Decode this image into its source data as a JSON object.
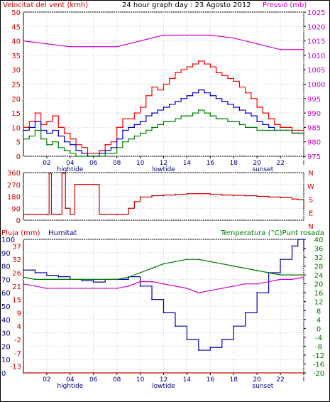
{
  "header": {
    "left_title": "Velocitat del vent (kmh)",
    "center_title": "24 hour graph day : 23 Agosto 2012",
    "right_title": "Pressió (mb)"
  },
  "colors": {
    "wind_gust": "#ff0000",
    "wind_avg": "#0000cc",
    "wind_low": "#008000",
    "pressure": "#cc00cc",
    "direction": "#cc0000",
    "humidity": "#0000aa",
    "temperature": "#007700",
    "dewpoint": "#cc00cc",
    "rain": "#cc0000",
    "grid": "#cccccc",
    "frame": "#000000"
  },
  "time_axis": {
    "ticks": [
      "02",
      "04",
      "06",
      "08",
      "10",
      "12",
      "14",
      "16",
      "18",
      "20",
      "22",
      "I"
    ],
    "events": [
      {
        "label": "hightide",
        "hour": 4
      },
      {
        "label": "lowtide",
        "hour": 12
      },
      {
        "label": "sunset",
        "hour": 20.5
      }
    ]
  },
  "chart_data": [
    {
      "type": "line",
      "panel": "wind",
      "title": "Velocitat del vent (kmh)",
      "right_title": "Pressió (mb)",
      "x_unit": "hour",
      "xlim": [
        0,
        24
      ],
      "ylim": [
        0,
        50
      ],
      "y_ticks": [
        0,
        5,
        10,
        15,
        20,
        25,
        30,
        35,
        40,
        45,
        50
      ],
      "y2lim": [
        975,
        1025
      ],
      "y2_ticks": [
        975,
        980,
        985,
        990,
        995,
        1000,
        1005,
        1010,
        1015,
        1020,
        1025
      ],
      "series": [
        {
          "key": "gust",
          "x": [
            0,
            0.5,
            1,
            1.5,
            2,
            2.5,
            3,
            3.5,
            4,
            4.5,
            5,
            5.5,
            6,
            6.5,
            7,
            7.5,
            8,
            8.5,
            9,
            9.5,
            10,
            10.5,
            11,
            11.5,
            12,
            12.5,
            13,
            13.5,
            14,
            14.5,
            15,
            15.5,
            16,
            16.5,
            17,
            17.5,
            18,
            18.5,
            19,
            19.5,
            20,
            20.5,
            21,
            21.5,
            22,
            22.5,
            23,
            23.5,
            24
          ],
          "values": [
            10,
            12,
            15,
            11,
            12,
            14,
            10,
            8,
            6,
            4,
            3,
            1,
            1,
            2,
            4,
            5,
            10,
            13,
            13,
            15,
            17,
            21,
            24,
            23,
            25,
            27,
            29,
            30,
            31,
            32,
            33,
            32,
            31,
            29,
            28,
            27,
            26,
            24,
            22,
            20,
            17,
            15,
            13,
            11,
            10,
            10,
            9,
            9,
            9
          ]
        },
        {
          "key": "average",
          "x": [
            0,
            0.5,
            1,
            1.5,
            2,
            2.5,
            3,
            3.5,
            4,
            4.5,
            5,
            5.5,
            6,
            6.5,
            7,
            7.5,
            8,
            8.5,
            9,
            9.5,
            10,
            10.5,
            11,
            11.5,
            12,
            12.5,
            13,
            13.5,
            14,
            14.5,
            15,
            15.5,
            16,
            16.5,
            17,
            17.5,
            18,
            18.5,
            19,
            19.5,
            20,
            20.5,
            21,
            21.5,
            22,
            22.5,
            23,
            23.5,
            24
          ],
          "values": [
            9,
            10,
            12,
            9,
            8,
            9,
            7,
            5,
            4,
            2,
            1,
            0,
            0,
            1,
            2,
            3,
            6,
            9,
            10,
            11,
            12,
            14,
            15,
            16,
            17,
            18,
            19,
            20,
            21,
            22,
            23,
            22,
            21,
            20,
            19,
            18,
            17,
            16,
            15,
            14,
            12,
            11,
            10,
            9,
            9,
            9,
            8,
            8,
            8
          ]
        },
        {
          "key": "low",
          "x": [
            0,
            0.5,
            1,
            1.5,
            2,
            2.5,
            3,
            3.5,
            4,
            4.5,
            5,
            5.5,
            6,
            6.5,
            7,
            7.5,
            8,
            8.5,
            9,
            9.5,
            10,
            10.5,
            11,
            11.5,
            12,
            12.5,
            13,
            13.5,
            14,
            14.5,
            15,
            15.5,
            16,
            16.5,
            17,
            17.5,
            18,
            18.5,
            19,
            19.5,
            20,
            20.5,
            21,
            21.5,
            22,
            22.5,
            23,
            23.5,
            24
          ],
          "values": [
            6,
            7,
            9,
            6,
            4,
            5,
            3,
            2,
            1,
            0,
            0,
            0,
            0,
            0,
            1,
            1,
            3,
            5,
            6,
            7,
            8,
            9,
            10,
            11,
            12,
            12,
            13,
            14,
            14,
            15,
            16,
            15,
            14,
            13,
            13,
            12,
            12,
            11,
            10,
            10,
            9,
            9,
            9,
            9,
            9,
            9,
            8,
            8,
            8
          ]
        },
        {
          "key": "pressure",
          "axis": "y2",
          "x": [
            0,
            2,
            4,
            6,
            8,
            10,
            12,
            14,
            16,
            18,
            20,
            22,
            24
          ],
          "values": [
            1015,
            1014,
            1013,
            1013,
            1013,
            1015,
            1017,
            1017,
            1017,
            1016,
            1014,
            1012,
            1012
          ]
        }
      ]
    },
    {
      "type": "line",
      "panel": "direction",
      "x_unit": "hour",
      "xlim": [
        0,
        24
      ],
      "ylim": [
        0,
        360
      ],
      "y_ticks": [
        0,
        90,
        180,
        270,
        360
      ],
      "right_labels": [
        "N",
        "W",
        "S",
        "E",
        "N"
      ],
      "series": [
        {
          "key": "direction",
          "x": [
            0,
            0.5,
            1,
            1.5,
            2,
            2.2,
            2.4,
            2.6,
            3,
            3.3,
            3.6,
            4,
            4.4,
            5,
            5.5,
            6,
            6.5,
            7,
            7.5,
            8,
            8.5,
            9,
            9.5,
            10,
            11,
            12,
            13,
            14,
            15,
            16,
            17,
            18,
            19,
            20,
            21,
            22,
            23,
            23.5,
            24
          ],
          "values": [
            45,
            45,
            45,
            45,
            45,
            355,
            45,
            45,
            45,
            355,
            90,
            45,
            270,
            270,
            270,
            270,
            45,
            45,
            45,
            45,
            45,
            90,
            140,
            175,
            185,
            190,
            195,
            200,
            200,
            195,
            190,
            188,
            185,
            180,
            175,
            170,
            160,
            155,
            90
          ]
        }
      ]
    },
    {
      "type": "line",
      "panel": "humidity-temperature",
      "left_title": "Pluja (mm)",
      "center_title": "Humitat",
      "right_title": "Temperatura (°C)Punt rosada",
      "x_unit": "hour",
      "xlim": [
        0,
        24
      ],
      "ylim": [
        0,
        100
      ],
      "y_ticks": [
        0,
        10,
        20,
        30,
        40,
        50,
        60,
        70,
        80,
        90,
        100
      ],
      "y_ticks_humidity": [
        -13,
        -7,
        -2,
        4,
        9,
        15,
        21,
        26,
        32,
        37
      ],
      "y2lim": [
        -20,
        40
      ],
      "y2_ticks": [
        -20,
        -16,
        -12,
        -8,
        -4,
        0,
        4,
        8,
        12,
        16,
        20,
        24,
        28,
        32,
        36,
        40
      ],
      "series": [
        {
          "key": "humidity",
          "x": [
            0,
            1,
            2,
            3,
            4,
            5,
            6,
            7,
            8,
            9,
            10,
            11,
            12,
            13,
            14,
            15,
            16,
            17,
            18,
            19,
            20,
            21,
            22,
            23,
            23.5,
            24
          ],
          "values": [
            77,
            75,
            73,
            72,
            70,
            69,
            68,
            70,
            70,
            72,
            65,
            55,
            45,
            35,
            25,
            17,
            19,
            25,
            35,
            45,
            60,
            75,
            85,
            95,
            100,
            92
          ]
        },
        {
          "key": "temperature",
          "axis": "y2",
          "x": [
            0,
            1,
            2,
            3,
            4,
            5,
            6,
            7,
            8,
            9,
            10,
            11,
            12,
            13,
            14,
            15,
            16,
            17,
            18,
            19,
            20,
            21,
            22,
            23,
            24
          ],
          "values": [
            23,
            22,
            22,
            22,
            22,
            22,
            22,
            22,
            22,
            23,
            25,
            27,
            29,
            30,
            31,
            31,
            30,
            29,
            28,
            27,
            26,
            25,
            24,
            24,
            24
          ]
        },
        {
          "key": "dewpoint",
          "axis": "y2",
          "x": [
            0,
            1,
            2,
            3,
            4,
            5,
            6,
            7,
            8,
            9,
            10,
            11,
            12,
            13,
            14,
            15,
            16,
            17,
            18,
            19,
            20,
            21,
            22,
            23,
            24
          ],
          "values": [
            20,
            19,
            18,
            18,
            18,
            18,
            18,
            18,
            18,
            19,
            21,
            21,
            20,
            19,
            18,
            16,
            17,
            18,
            19,
            20,
            20,
            21,
            22,
            22,
            23
          ]
        },
        {
          "key": "rain",
          "x": [
            0,
            24
          ],
          "values": [
            0,
            0
          ]
        }
      ]
    }
  ]
}
